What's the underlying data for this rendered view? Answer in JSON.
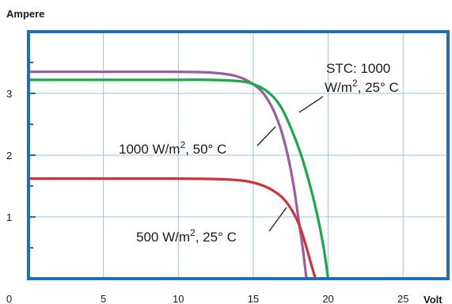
{
  "chart_data": {
    "type": "line",
    "xlabel": "Volt",
    "ylabel": "Ampere",
    "xlim": [
      0,
      28
    ],
    "ylim": [
      0,
      4
    ],
    "x_ticks": [
      0,
      5,
      10,
      15,
      20,
      25
    ],
    "y_ticks": [
      1,
      2,
      3
    ],
    "grid": true,
    "colors": {
      "frame": "#1f6fb5",
      "grid": "#9fc0e0"
    },
    "series": [
      {
        "color": "#9b5c9c",
        "points": [
          [
            0,
            3.35
          ],
          [
            5,
            3.35
          ],
          [
            10,
            3.35
          ],
          [
            12,
            3.34
          ],
          [
            13.5,
            3.3
          ],
          [
            14.5,
            3.22
          ],
          [
            15.5,
            3.05
          ],
          [
            16.2,
            2.8
          ],
          [
            16.8,
            2.45
          ],
          [
            17.3,
            2.0
          ],
          [
            17.7,
            1.5
          ],
          [
            18.0,
            1.0
          ],
          [
            18.3,
            0.5
          ],
          [
            18.55,
            0
          ]
        ]
      },
      {
        "color": "#18a94a",
        "points": [
          [
            0,
            3.22
          ],
          [
            5,
            3.22
          ],
          [
            10,
            3.22
          ],
          [
            12,
            3.22
          ],
          [
            14,
            3.2
          ],
          [
            15,
            3.15
          ],
          [
            16,
            3.02
          ],
          [
            16.8,
            2.8
          ],
          [
            17.5,
            2.45
          ],
          [
            18.2,
            2.0
          ],
          [
            18.8,
            1.5
          ],
          [
            19.3,
            1.0
          ],
          [
            19.7,
            0.5
          ],
          [
            20.0,
            0
          ]
        ]
      },
      {
        "color": "#d0323a",
        "points": [
          [
            0,
            1.62
          ],
          [
            5,
            1.62
          ],
          [
            10,
            1.62
          ],
          [
            13,
            1.61
          ],
          [
            14.5,
            1.58
          ],
          [
            15.5,
            1.52
          ],
          [
            16.3,
            1.43
          ],
          [
            17,
            1.3
          ],
          [
            17.6,
            1.1
          ],
          [
            18.1,
            0.85
          ],
          [
            18.5,
            0.55
          ],
          [
            18.85,
            0.25
          ],
          [
            19.15,
            0
          ]
        ]
      }
    ],
    "annotations": [
      {
        "id": "stc",
        "lines": [
          "STC: 1000",
          "W/m2, 25° C"
        ]
      },
      {
        "id": "hot",
        "lines": [
          "1000 W/m2, 50° C"
        ]
      },
      {
        "id": "half",
        "lines": [
          "500 W/m2, 25° C"
        ]
      }
    ]
  }
}
